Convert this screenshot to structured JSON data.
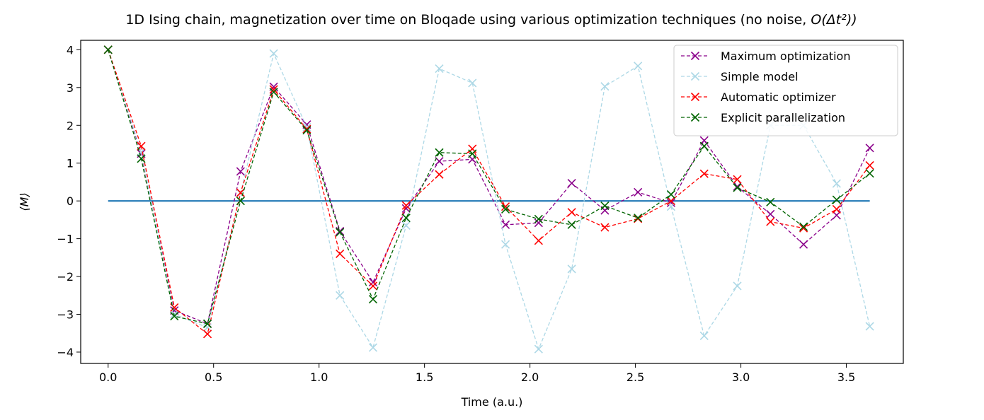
{
  "chart_data": {
    "type": "line",
    "title": "1D Ising chain, magnetization over time on Bloqade using various optimization techniques (no noise, ",
    "title_math": "O(Δt²))",
    "xlabel": "Time (a.u.)",
    "ylabel": "⟨M⟩",
    "xlim": [
      -0.13,
      3.77
    ],
    "ylim": [
      -4.3,
      4.25
    ],
    "xticks": [
      0.0,
      0.5,
      1.0,
      1.5,
      2.0,
      2.5,
      3.0,
      3.5
    ],
    "xtick_labels": [
      "0.0",
      "0.5",
      "1.0",
      "1.5",
      "2.0",
      "2.5",
      "3.0",
      "3.5"
    ],
    "yticks": [
      4,
      3,
      2,
      1,
      0,
      -1,
      -2,
      -3,
      -4
    ],
    "ytick_labels": [
      "4",
      "3",
      "2",
      "1",
      "0",
      "−1",
      "−2",
      "−3",
      "−4"
    ],
    "grid": false,
    "legend_position": "top-right",
    "x": [
      0.0,
      0.157,
      0.314,
      0.471,
      0.628,
      0.785,
      0.942,
      1.099,
      1.256,
      1.413,
      1.57,
      1.727,
      1.884,
      2.041,
      2.198,
      2.355,
      2.512,
      2.669,
      2.826,
      2.983,
      3.14,
      3.297,
      3.454,
      3.611
    ],
    "baseline": {
      "value": 0,
      "color": "#1f77b4"
    },
    "series": [
      {
        "name": "Maximum optimization",
        "color": "#8b008b",
        "values": [
          4.0,
          1.25,
          -2.9,
          -3.25,
          0.78,
          3.02,
          2.02,
          -0.8,
          -2.15,
          -0.2,
          1.05,
          1.1,
          -0.63,
          -0.58,
          0.47,
          -0.25,
          0.23,
          -0.05,
          1.6,
          0.38,
          -0.35,
          -1.15,
          -0.38,
          1.4
        ]
      },
      {
        "name": "Simple model",
        "color": "#add8e6",
        "values": [
          4.0,
          1.3,
          -3.0,
          -3.35,
          0.2,
          3.9,
          1.95,
          -2.5,
          -3.88,
          -0.65,
          3.5,
          3.12,
          -1.15,
          -3.92,
          -1.8,
          3.03,
          3.57,
          -0.15,
          -3.57,
          -2.25,
          2.0,
          2.0,
          0.46,
          -3.32
        ]
      },
      {
        "name": "Automatic optimizer",
        "color": "#ff0000",
        "values": [
          4.0,
          1.45,
          -2.82,
          -3.52,
          0.22,
          2.95,
          1.9,
          -1.4,
          -2.25,
          -0.12,
          0.7,
          1.38,
          -0.15,
          -1.05,
          -0.3,
          -0.7,
          -0.47,
          0.0,
          0.72,
          0.57,
          -0.55,
          -0.72,
          -0.22,
          0.94
        ]
      },
      {
        "name": "Explicit parallelization",
        "color": "#006400",
        "values": [
          4.0,
          1.12,
          -3.05,
          -3.25,
          0.0,
          2.88,
          1.87,
          -0.83,
          -2.6,
          -0.45,
          1.28,
          1.25,
          -0.22,
          -0.48,
          -0.63,
          -0.13,
          -0.45,
          0.17,
          1.45,
          0.35,
          -0.03,
          -0.68,
          0.03,
          0.73
        ]
      }
    ]
  }
}
